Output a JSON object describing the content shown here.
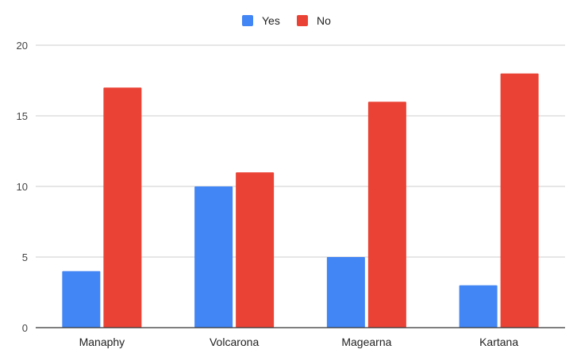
{
  "chart_data": {
    "type": "bar",
    "categories": [
      "Manaphy",
      "Volcarona",
      "Magearna",
      "Kartana"
    ],
    "series": [
      {
        "name": "Yes",
        "values": [
          4,
          10,
          5,
          3
        ],
        "color": "#4285f4"
      },
      {
        "name": "No",
        "values": [
          17,
          11,
          16,
          18
        ],
        "color": "#ea4335"
      }
    ],
    "ylim": [
      0,
      20
    ],
    "yticks": [
      "0",
      "5",
      "10",
      "15",
      "20"
    ],
    "grid": true,
    "legend_position": "top"
  }
}
